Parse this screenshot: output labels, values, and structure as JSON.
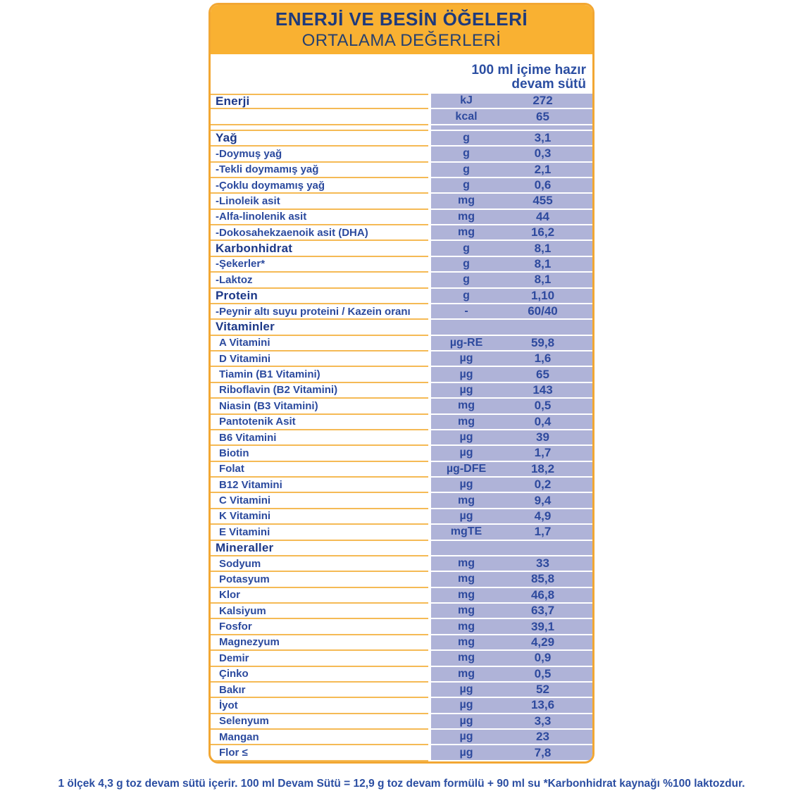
{
  "header": {
    "title_line1": "ENERJİ VE BESİN ÖĞELERİ",
    "title_line2": "ORTALAMA DEĞERLERİ",
    "column_header_line1": "100 ml içime hazır",
    "column_header_line2": "devam sütü"
  },
  "table": {
    "rows": [
      {
        "label": "Enerji",
        "unit": "kJ",
        "value": "272",
        "style": "section"
      },
      {
        "label": "",
        "unit": "kcal",
        "value": "65",
        "style": "item"
      },
      {
        "label": "",
        "unit": "",
        "value": "",
        "style": "spacer"
      },
      {
        "label": "Yağ",
        "unit": "g",
        "value": "3,1",
        "style": "section"
      },
      {
        "label": "-Doymuş yağ",
        "unit": "g",
        "value": "0,3",
        "style": "sub"
      },
      {
        "label": "-Tekli doymamış yağ",
        "unit": "g",
        "value": "2,1",
        "style": "sub"
      },
      {
        "label": "-Çoklu doymamış yağ",
        "unit": "g",
        "value": "0,6",
        "style": "sub"
      },
      {
        "label": "-Linoleik asit",
        "unit": "mg",
        "value": "455",
        "style": "sub"
      },
      {
        "label": "-Alfa-linolenik asit",
        "unit": "mg",
        "value": "44",
        "style": "sub"
      },
      {
        "label": "-Dokosahekzaenoik asit (DHA)",
        "unit": "mg",
        "value": "16,2",
        "style": "sub"
      },
      {
        "label": "Karbonhidrat",
        "unit": "g",
        "value": "8,1",
        "style": "section"
      },
      {
        "label": "-Şekerler*",
        "unit": "g",
        "value": "8,1",
        "style": "sub"
      },
      {
        "label": "-Laktoz",
        "unit": "g",
        "value": "8,1",
        "style": "sub"
      },
      {
        "label": "Protein",
        "unit": "g",
        "value": "1,10",
        "style": "section"
      },
      {
        "label": "-Peynir altı suyu proteini / Kazein oranı",
        "unit": "-",
        "value": "60/40",
        "style": "sub"
      },
      {
        "label": "Vitaminler",
        "unit": "",
        "value": "",
        "style": "section"
      },
      {
        "label": "A Vitamini",
        "unit": "µg-RE",
        "value": "59,8",
        "style": "item"
      },
      {
        "label": "D Vitamini",
        "unit": "µg",
        "value": "1,6",
        "style": "item"
      },
      {
        "label": "Tiamin (B1 Vitamini)",
        "unit": "µg",
        "value": "65",
        "style": "item"
      },
      {
        "label": "Riboflavin (B2 Vitamini)",
        "unit": "µg",
        "value": "143",
        "style": "item"
      },
      {
        "label": "Niasin (B3 Vitamini)",
        "unit": "mg",
        "value": "0,5",
        "style": "item"
      },
      {
        "label": "Pantotenik Asit",
        "unit": "mg",
        "value": "0,4",
        "style": "item"
      },
      {
        "label": "B6 Vitamini",
        "unit": "µg",
        "value": "39",
        "style": "item"
      },
      {
        "label": "Biotin",
        "unit": "µg",
        "value": "1,7",
        "style": "item"
      },
      {
        "label": "Folat",
        "unit": "µg-DFE",
        "value": "18,2",
        "style": "item"
      },
      {
        "label": "B12 Vitamini",
        "unit": "µg",
        "value": "0,2",
        "style": "item"
      },
      {
        "label": "C Vitamini",
        "unit": "mg",
        "value": "9,4",
        "style": "item"
      },
      {
        "label": "K Vitamini",
        "unit": "µg",
        "value": "4,9",
        "style": "item"
      },
      {
        "label": "E Vitamini",
        "unit": "mgTE",
        "value": "1,7",
        "style": "item"
      },
      {
        "label": "Mineraller",
        "unit": "",
        "value": "",
        "style": "section"
      },
      {
        "label": "Sodyum",
        "unit": "mg",
        "value": "33",
        "style": "item"
      },
      {
        "label": "Potasyum",
        "unit": "mg",
        "value": "85,8",
        "style": "item"
      },
      {
        "label": "Klor",
        "unit": "mg",
        "value": "46,8",
        "style": "item"
      },
      {
        "label": "Kalsiyum",
        "unit": "mg",
        "value": "63,7",
        "style": "item"
      },
      {
        "label": "Fosfor",
        "unit": "mg",
        "value": "39,1",
        "style": "item"
      },
      {
        "label": "Magnezyum",
        "unit": "mg",
        "value": "4,29",
        "style": "item"
      },
      {
        "label": "Demir",
        "unit": "mg",
        "value": "0,9",
        "style": "item"
      },
      {
        "label": "Çinko",
        "unit": "mg",
        "value": "0,5",
        "style": "item"
      },
      {
        "label": "Bakır",
        "unit": "µg",
        "value": "52",
        "style": "item"
      },
      {
        "label": "İyot",
        "unit": "µg",
        "value": "13,6",
        "style": "item"
      },
      {
        "label": "Selenyum",
        "unit": "µg",
        "value": "3,3",
        "style": "item"
      },
      {
        "label": "Mangan",
        "unit": "µg",
        "value": "23",
        "style": "item"
      },
      {
        "label": "Flor ≤",
        "unit": "µg",
        "value": "7,8",
        "style": "item"
      }
    ]
  },
  "footnote": "1 ölçek 4,3 g toz devam sütü içerir. 100 ml Devam Sütü = 12,9 g toz devam formülü + 90 ml su *Karbonhidrat kaynağı %100 laktozdur.",
  "colors": {
    "band_orange": "#F9B132",
    "border_orange": "#F2A733",
    "separator_orange": "#F5BA55",
    "value_lavender": "#AFB3D8",
    "title_navy": "#1E3A7C",
    "text_blue": "#2B4A9E"
  }
}
